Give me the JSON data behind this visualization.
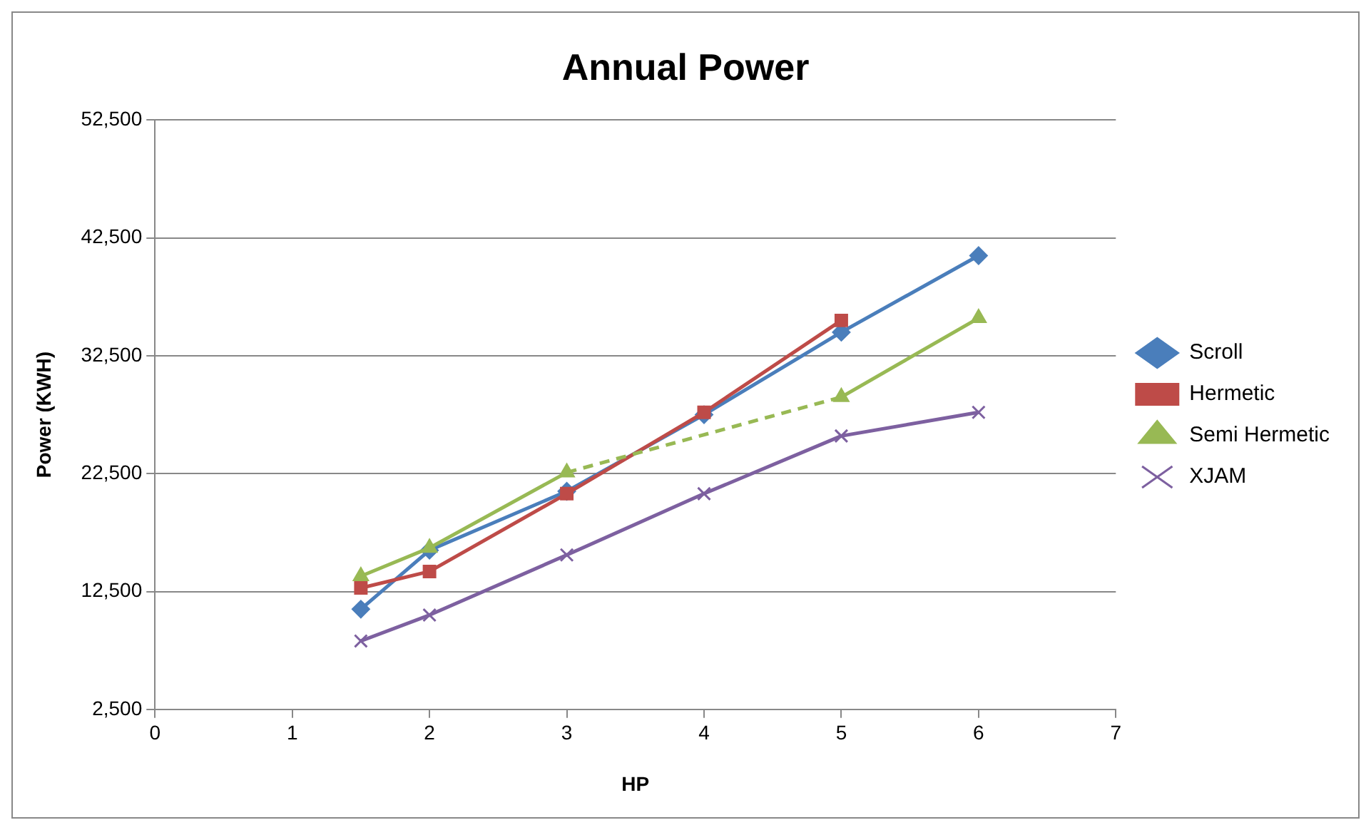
{
  "chart_data": {
    "type": "line",
    "title": "Annual Power",
    "xlabel": "HP",
    "ylabel": "Power (KWH)",
    "x": [
      1.5,
      2,
      3,
      4,
      5,
      6
    ],
    "series": [
      {
        "name": "Scroll",
        "color": "#4a7ebb",
        "marker": "diamond",
        "values": [
          11000,
          16000,
          21000,
          27500,
          34500,
          41000
        ]
      },
      {
        "name": "Hermetic",
        "color": "#be4b48",
        "marker": "square",
        "values": [
          12800,
          14200,
          20800,
          27700,
          35500,
          null
        ]
      },
      {
        "name": "Semi Hermetic",
        "color": "#98b954",
        "marker": "triangle",
        "values": [
          13800,
          16200,
          22600,
          null,
          29000,
          35700
        ]
      },
      {
        "name": "XJAM",
        "color": "#7d60a0",
        "marker": "cross",
        "values": [
          8300,
          10500,
          15600,
          20800,
          25700,
          27700
        ]
      }
    ],
    "xlim": [
      0,
      7
    ],
    "xticks": [
      0,
      1,
      2,
      3,
      4,
      5,
      6,
      7
    ],
    "ylim": [
      2500,
      52500
    ],
    "yticks": [
      {
        "value": 2500,
        "label": "2,500"
      },
      {
        "value": 12500,
        "label": "12,500"
      },
      {
        "value": 22500,
        "label": "22,500"
      },
      {
        "value": 32500,
        "label": "32,500"
      },
      {
        "value": 42500,
        "label": "42,500"
      },
      {
        "value": 52500,
        "label": "52,500"
      }
    ],
    "grid": "y",
    "legend": "right"
  }
}
